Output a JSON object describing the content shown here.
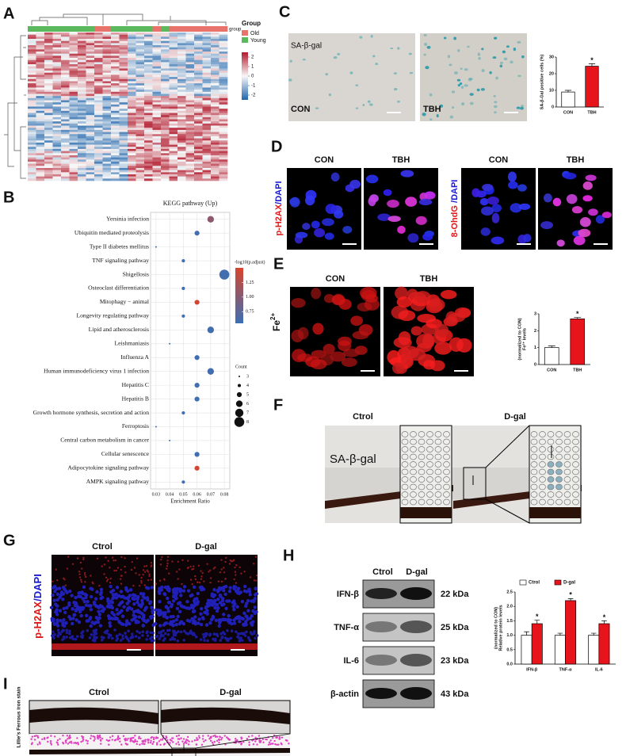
{
  "panels": {
    "letters": [
      "A",
      "B",
      "C",
      "D",
      "E",
      "F",
      "G",
      "H",
      "I"
    ]
  },
  "heatmap": {
    "group_legend_title": "Group",
    "groups": [
      "Old",
      "Young"
    ],
    "group_colors": [
      "#e8736c",
      "#5cb85c"
    ],
    "track_label": "group",
    "scale_ticks": [
      2,
      1,
      0,
      -1,
      -2
    ]
  },
  "panel_c": {
    "stain": "SA-β-gal",
    "conditions": [
      "CON",
      "TBH"
    ]
  },
  "panel_d": {
    "conditions": [
      "CON",
      "TBH",
      "CON",
      "TBH"
    ],
    "markers": [
      {
        "stain": "p-H2AX",
        "counter": "/DAPI"
      },
      {
        "stain": "8-OhdG",
        "counter": " /DAPI"
      }
    ]
  },
  "panel_e": {
    "conditions": [
      "CON",
      "TBH"
    ],
    "ion": "Fe",
    "charge": "2+"
  },
  "panel_f": {
    "conditions": [
      "Ctrol",
      "D-gal"
    ],
    "stain": "SA-β-gal"
  },
  "panel_g": {
    "conditions": [
      "Ctrol",
      "D-gal"
    ],
    "stain": "p-H2AX",
    "counter": "/DAPI"
  },
  "panel_h": {
    "conditions": [
      "Ctrol",
      "D-gal"
    ],
    "proteins": [
      "IFN-β",
      "TNF-α",
      "IL-6",
      "β-actin"
    ],
    "sizes": [
      "22 kDa",
      "25 kDa",
      "23 kDa",
      "43 kDa"
    ]
  },
  "panel_i": {
    "conditions": [
      "Ctrol",
      "D-gal"
    ],
    "stain": "Lillie's Ferrous iron stain"
  },
  "chart_data": [
    {
      "type": "dot",
      "title": "KEGG pathway (Up)",
      "categories": [
        "Yersinia infection",
        "Ubiquitin mediated proteolysis",
        "Type II diabetes mellitus",
        "TNF signaling pathway",
        "Shigellosis",
        "Osteoclast differentiation",
        "Mitophagy − animal",
        "Longevity regulating pathway",
        "Lipid and atherosclerosis",
        "Leishmaniasis",
        "Influenza A",
        "Human immunodeficiency virus 1 infection",
        "Hepatitis C",
        "Hepatitis B",
        "Growth hormone synthesis, secretion and action",
        "Ferroptosis",
        "Central carbon metabolism in cancer",
        "Cellular senescence",
        "Adipocytokine signaling pathway",
        "AMPK signaling pathway"
      ],
      "values": [
        0.07,
        0.06,
        0.03,
        0.05,
        0.08,
        0.05,
        0.06,
        0.05,
        0.07,
        0.04,
        0.06,
        0.07,
        0.06,
        0.06,
        0.05,
        0.03,
        0.04,
        0.06,
        0.06,
        0.05
      ],
      "sizes": [
        6,
        5,
        3,
        4,
        8,
        4,
        5,
        4,
        6,
        3,
        5,
        6,
        5,
        5,
        4,
        3,
        3,
        5,
        5,
        4
      ],
      "color_values": [
        1.05,
        0.6,
        0.6,
        0.6,
        0.6,
        0.6,
        1.45,
        0.6,
        0.6,
        0.6,
        0.6,
        0.6,
        0.6,
        0.6,
        0.6,
        0.6,
        0.6,
        0.6,
        1.45,
        0.6
      ],
      "xlim": [
        0.026,
        0.084
      ],
      "xticks": [
        0.03,
        0.04,
        0.05,
        0.06,
        0.07,
        0.08
      ],
      "xlabel": "Enrichment Ratio",
      "grid": true,
      "color_title": "-log10(p.adjust)",
      "clim": [
        0.55,
        1.5
      ],
      "cticks": [
        1.25,
        {
          "value": 1,
          "label": "1.00"
        },
        0.75
      ],
      "color_low": "#3a6fb5",
      "color_high": "#d9442c",
      "size_title": "Count",
      "size_ticks": [
        3,
        4,
        5,
        6,
        7,
        8
      ]
    },
    {
      "type": "bar",
      "categories": [
        "CON",
        "TBH"
      ],
      "values": [
        9,
        24.5
      ],
      "errors": [
        1,
        1.5
      ],
      "colors": [
        "#ffffff",
        "#e8141c"
      ],
      "significance": [
        null,
        "*"
      ],
      "ylim": [
        0,
        30
      ],
      "yticks": [
        0,
        10,
        20,
        30
      ],
      "ylabel": [
        "SA-β-Gal positive cells (%)"
      ]
    },
    {
      "type": "bar",
      "categories": [
        "CON",
        "TBH"
      ],
      "values": [
        1,
        2.7
      ],
      "errors": [
        0.1,
        0.08
      ],
      "colors": [
        "#ffffff",
        "#e8141c"
      ],
      "significance": [
        null,
        "*"
      ],
      "ylim": [
        0,
        3
      ],
      "yticks": [
        0,
        1,
        2,
        3
      ],
      "ylabel": [
        "Fe²⁺ levels",
        "(normalized to CON)"
      ]
    },
    {
      "type": "grouped_bar",
      "categories": [
        "IFN-β",
        "TNF-α",
        "IL-6"
      ],
      "series": [
        {
          "name": "Ctrol",
          "color": "#ffffff",
          "values": [
            1,
            1,
            1
          ],
          "errors": [
            0.12,
            0.07,
            0.07
          ]
        },
        {
          "name": "D-gal",
          "color": "#e8141c",
          "values": [
            1.4,
            2.2,
            1.4
          ],
          "errors": [
            0.12,
            0.07,
            0.1
          ],
          "significance": [
            "*",
            "*",
            "*"
          ]
        }
      ],
      "ylim": [
        0,
        2.5
      ],
      "yticks": [
        {
          "value": 0,
          "label": "0.0"
        },
        0.5,
        {
          "value": 1,
          "label": "1.0"
        },
        1.5,
        {
          "value": 2,
          "label": "2.0"
        },
        2.5
      ],
      "ylabel": [
        "Relative protein levels",
        "(normalized to CON)"
      ]
    }
  ]
}
